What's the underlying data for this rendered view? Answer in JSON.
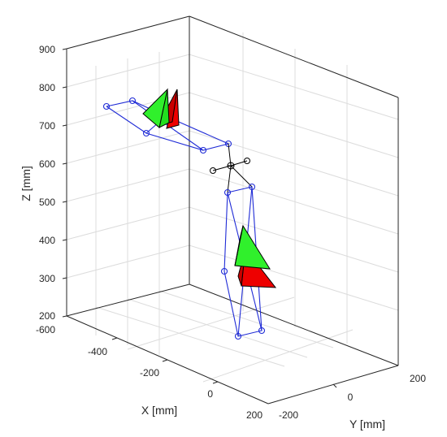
{
  "chart_data": {
    "type": "3d-line-scatter",
    "title": "",
    "xlabel": "X [mm]",
    "ylabel": "Y [mm]",
    "zlabel": "Z [mm]",
    "xlim": [
      -600,
      200
    ],
    "ylim": [
      -200,
      200
    ],
    "zlim": [
      200,
      900
    ],
    "x_ticks": [
      "-600",
      "-400",
      "-200",
      "0",
      "200"
    ],
    "y_ticks": [
      "-200",
      "0",
      "200"
    ],
    "z_ticks": [
      "200",
      "300",
      "400",
      "500",
      "600",
      "700",
      "800",
      "900"
    ],
    "grid": true,
    "colors": {
      "skeleton": "#1f2bd6",
      "center": "#000000",
      "green_marker": "#22e01f",
      "red_marker": "#ee0000",
      "axes": "#262626",
      "grid": "#dcdcdc"
    },
    "series": [
      {
        "points": [
          {
            "x": -520,
            "y": -130,
            "z": 750
          },
          {
            "x": -480,
            "y": -95,
            "z": 765
          },
          {
            "x": -330,
            "y": -55,
            "z": 720
          },
          {
            "x": -180,
            "y": -5,
            "z": 655
          },
          {
            "x": -240,
            "y": -60,
            "z": 635
          },
          {
            "x": -440,
            "y": -110,
            "z": 680
          }
        ]
      },
      {
        "points": [
          {
            "x": -140,
            "y": 60,
            "z": 520
          },
          {
            "x": -70,
            "y": 60,
            "z": 540
          },
          {
            "x": 10,
            "y": 30,
            "z": 215
          },
          {
            "x": -50,
            "y": 30,
            "z": 195
          },
          {
            "x": -150,
            "y": 60,
            "z": 320
          }
        ]
      },
      {
        "points": [
          {
            "x": -160,
            "y": 20,
            "z": 598
          },
          {
            "x": -200,
            "y": 20,
            "z": 590
          },
          {
            "x": -130,
            "y": 50,
            "z": 605
          }
        ]
      }
    ],
    "markers": [
      {
        "color": "green",
        "x": -370,
        "y": -60,
        "z": 790
      },
      {
        "color": "red",
        "x": -360,
        "y": -40,
        "z": 780
      },
      {
        "color": "green",
        "x": -80,
        "y": 90,
        "z": 410
      },
      {
        "color": "red",
        "x": -60,
        "y": 95,
        "z": 350
      }
    ]
  }
}
